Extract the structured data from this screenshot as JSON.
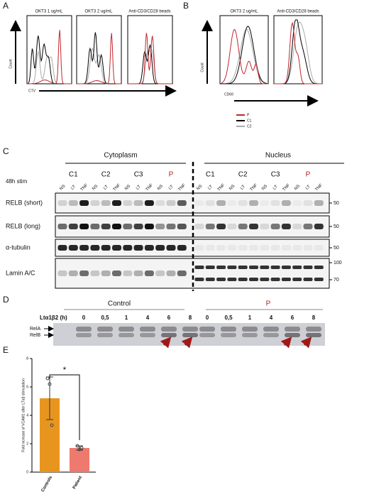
{
  "panel_a": {
    "label": "A",
    "titles": [
      "OKT3 1 ug/mL",
      "OKT3 2 ug/mL",
      "Anti-CD3/CD28 beads"
    ],
    "y_label": "Count",
    "x_label": "CTV"
  },
  "panel_b": {
    "label": "B",
    "titles": [
      "OKT3 2 ug/mL",
      "Anti-CD3/CD28 beads"
    ],
    "y_label": "Count",
    "x_label": "CD69",
    "legend": [
      {
        "name": "P",
        "color": "#c0262d"
      },
      {
        "name": "C1",
        "color": "#000000"
      },
      {
        "name": "C2",
        "color": "#aaaaaa"
      }
    ]
  },
  "panel_c": {
    "label": "C",
    "stim_label": "48h stim",
    "sections": [
      {
        "name": "Cytoplasm",
        "groups": [
          {
            "name": "C1",
            "lanes": [
              "NS",
              "LT",
              "TNF"
            ]
          },
          {
            "name": "C2",
            "lanes": [
              "NS",
              "LT",
              "TNF"
            ]
          },
          {
            "name": "C3",
            "lanes": [
              "NS",
              "LT",
              "TNF"
            ]
          },
          {
            "name": "P",
            "lanes": [
              "NS",
              "LT",
              "TNF"
            ]
          }
        ]
      },
      {
        "name": "Nucleus",
        "groups": [
          {
            "name": "C1",
            "lanes": [
              "NS",
              "LT",
              "TNF"
            ]
          },
          {
            "name": "C2",
            "lanes": [
              "NS",
              "LT",
              "TNF"
            ]
          },
          {
            "name": "C3",
            "lanes": [
              "NS",
              "LT",
              "TNF"
            ]
          },
          {
            "name": "P",
            "lanes": [
              "NS",
              "LT",
              "TNF"
            ]
          }
        ]
      }
    ],
    "rows": [
      {
        "name": "RELB (short)",
        "markers": [
          "50"
        ]
      },
      {
        "name": "RELB (long)",
        "markers": [
          "50"
        ]
      },
      {
        "name": "α-tubulin",
        "markers": [
          "50"
        ]
      },
      {
        "name": "Lamin A/C",
        "markers": [
          "100",
          "70"
        ]
      }
    ]
  },
  "panel_d": {
    "label": "D",
    "axis_label": "Ltα1β2 (h)",
    "bands": [
      "RelA",
      "RelB"
    ],
    "groups": [
      {
        "name": "Control",
        "times": [
          "0",
          "0,5",
          "1",
          "4",
          "6",
          "8"
        ]
      },
      {
        "name": "P",
        "times": [
          "0",
          "0,5",
          "1",
          "4",
          "6",
          "8"
        ]
      }
    ]
  },
  "chart_data": {
    "type": "bar",
    "label": "E",
    "y_label": "Fold increase of VCAM1 after LTαβ stimulation",
    "categories": [
      "Controls",
      "Patient"
    ],
    "values": [
      5.2,
      1.7
    ],
    "errors": [
      1.5,
      0.15
    ],
    "points": [
      [
        6.6,
        6.2,
        3.3
      ],
      [
        1.85,
        1.6,
        1.7
      ]
    ],
    "colors": [
      "#e8951f",
      "#ee7a6f"
    ],
    "ylim": [
      0,
      8
    ],
    "yticks": [
      0,
      2,
      4,
      6,
      8
    ],
    "annotation": "*"
  }
}
